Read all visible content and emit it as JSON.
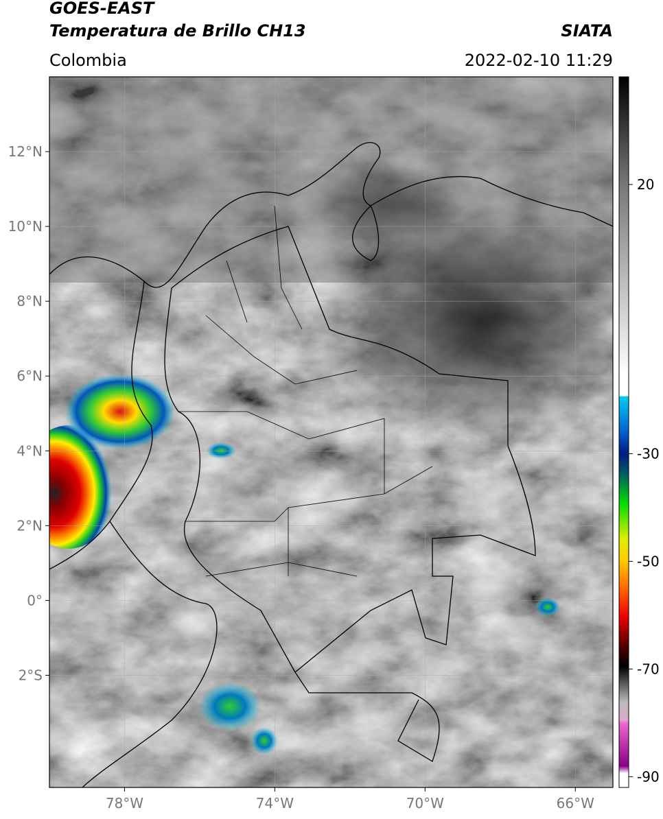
{
  "header": {
    "title": "GOES-EAST",
    "subtitle": "Temperatura de Brillo CH13",
    "agency": "SIATA",
    "region": "Colombia",
    "datetime": "2022-02-10 11:29"
  },
  "map": {
    "xlim": [
      -80,
      -65
    ],
    "ylim": [
      -5,
      14
    ],
    "xticks": [
      {
        "value": -78,
        "label": "78°W"
      },
      {
        "value": -74,
        "label": "74°W"
      },
      {
        "value": -70,
        "label": "70°W"
      },
      {
        "value": -66,
        "label": "66°W"
      }
    ],
    "yticks": [
      {
        "value": 12,
        "label": "12°N"
      },
      {
        "value": 10,
        "label": "10°N"
      },
      {
        "value": 8,
        "label": "8°N"
      },
      {
        "value": 6,
        "label": "6°N"
      },
      {
        "value": 4,
        "label": "4°N"
      },
      {
        "value": 2,
        "label": "2°N"
      },
      {
        "value": 0,
        "label": "0°"
      },
      {
        "value": -2,
        "label": "2°S"
      }
    ],
    "grid": true
  },
  "colorbar": {
    "lim": [
      -92,
      40
    ],
    "ticks": [
      20,
      -30,
      -50,
      -70,
      -90
    ]
  }
}
